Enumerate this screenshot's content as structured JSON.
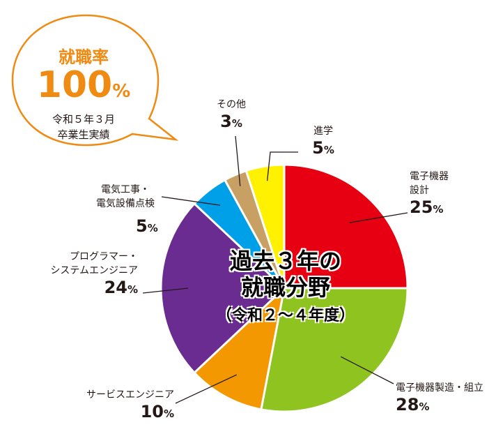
{
  "bubble": {
    "title": "就職率",
    "rate_value": "100",
    "rate_unit": "%",
    "note_line1": "令和５年３月",
    "note_line2": "卒業生実績",
    "color": "#ef8a12"
  },
  "center": {
    "title_line1": "過去３年の",
    "title_line2": "就職分野",
    "subtitle": "（令和２～４年度）"
  },
  "chart_data": {
    "type": "pie",
    "title": "過去３年の就職分野",
    "subtitle": "（令和２～４年度）",
    "slices": [
      {
        "label_lines": [
          "電子機器",
          "設計"
        ],
        "value": 25,
        "color": "#e60012"
      },
      {
        "label_lines": [
          "電子機器製造・組立"
        ],
        "value": 28,
        "color": "#8fc31f"
      },
      {
        "label_lines": [
          "サービスエンジニア"
        ],
        "value": 10,
        "color": "#f39800"
      },
      {
        "label_lines": [
          "プログラマー・",
          "システムエンジニア"
        ],
        "value": 24,
        "color": "#6a2c91"
      },
      {
        "label_lines": [
          "電気工事・",
          "電気設備点検"
        ],
        "value": 5,
        "color": "#00a0e9"
      },
      {
        "label_lines": [
          "その他"
        ],
        "value": 3,
        "color": "#c9a063"
      },
      {
        "label_lines": [
          "進学"
        ],
        "value": 5,
        "color": "#fff100"
      }
    ],
    "unit": "%"
  }
}
